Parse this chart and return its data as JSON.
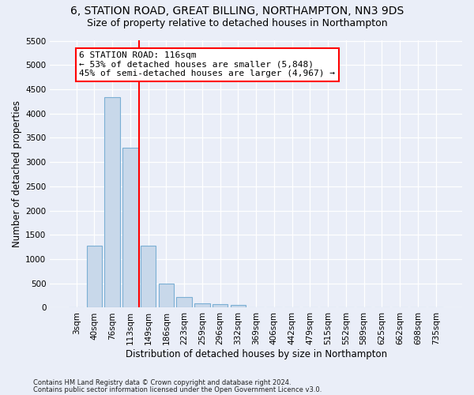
{
  "title1": "6, STATION ROAD, GREAT BILLING, NORTHAMPTON, NN3 9DS",
  "title2": "Size of property relative to detached houses in Northampton",
  "xlabel": "Distribution of detached houses by size in Northampton",
  "ylabel": "Number of detached properties",
  "footer1": "Contains HM Land Registry data © Crown copyright and database right 2024.",
  "footer2": "Contains public sector information licensed under the Open Government Licence v3.0.",
  "bar_labels": [
    "3sqm",
    "40sqm",
    "76sqm",
    "113sqm",
    "149sqm",
    "186sqm",
    "223sqm",
    "259sqm",
    "296sqm",
    "332sqm",
    "369sqm",
    "406sqm",
    "442sqm",
    "479sqm",
    "515sqm",
    "552sqm",
    "589sqm",
    "625sqm",
    "662sqm",
    "698sqm",
    "735sqm"
  ],
  "bar_values": [
    0,
    1270,
    4330,
    3300,
    1280,
    490,
    215,
    90,
    65,
    55,
    0,
    0,
    0,
    0,
    0,
    0,
    0,
    0,
    0,
    0,
    0
  ],
  "bar_color": "#c8d8ea",
  "bar_edgecolor": "#7bafd4",
  "annotation_text": "6 STATION ROAD: 116sqm\n← 53% of detached houses are smaller (5,848)\n45% of semi-detached houses are larger (4,967) →",
  "red_line_bar_index": 3,
  "ylim": [
    0,
    5500
  ],
  "yticks": [
    0,
    500,
    1000,
    1500,
    2000,
    2500,
    3000,
    3500,
    4000,
    4500,
    5000,
    5500
  ],
  "bg_color": "#eaeef8",
  "fig_color": "#eaeef8",
  "grid_color": "#ffffff",
  "title1_fontsize": 10,
  "title2_fontsize": 9,
  "tick_fontsize": 7.5,
  "axis_label_fontsize": 8.5
}
